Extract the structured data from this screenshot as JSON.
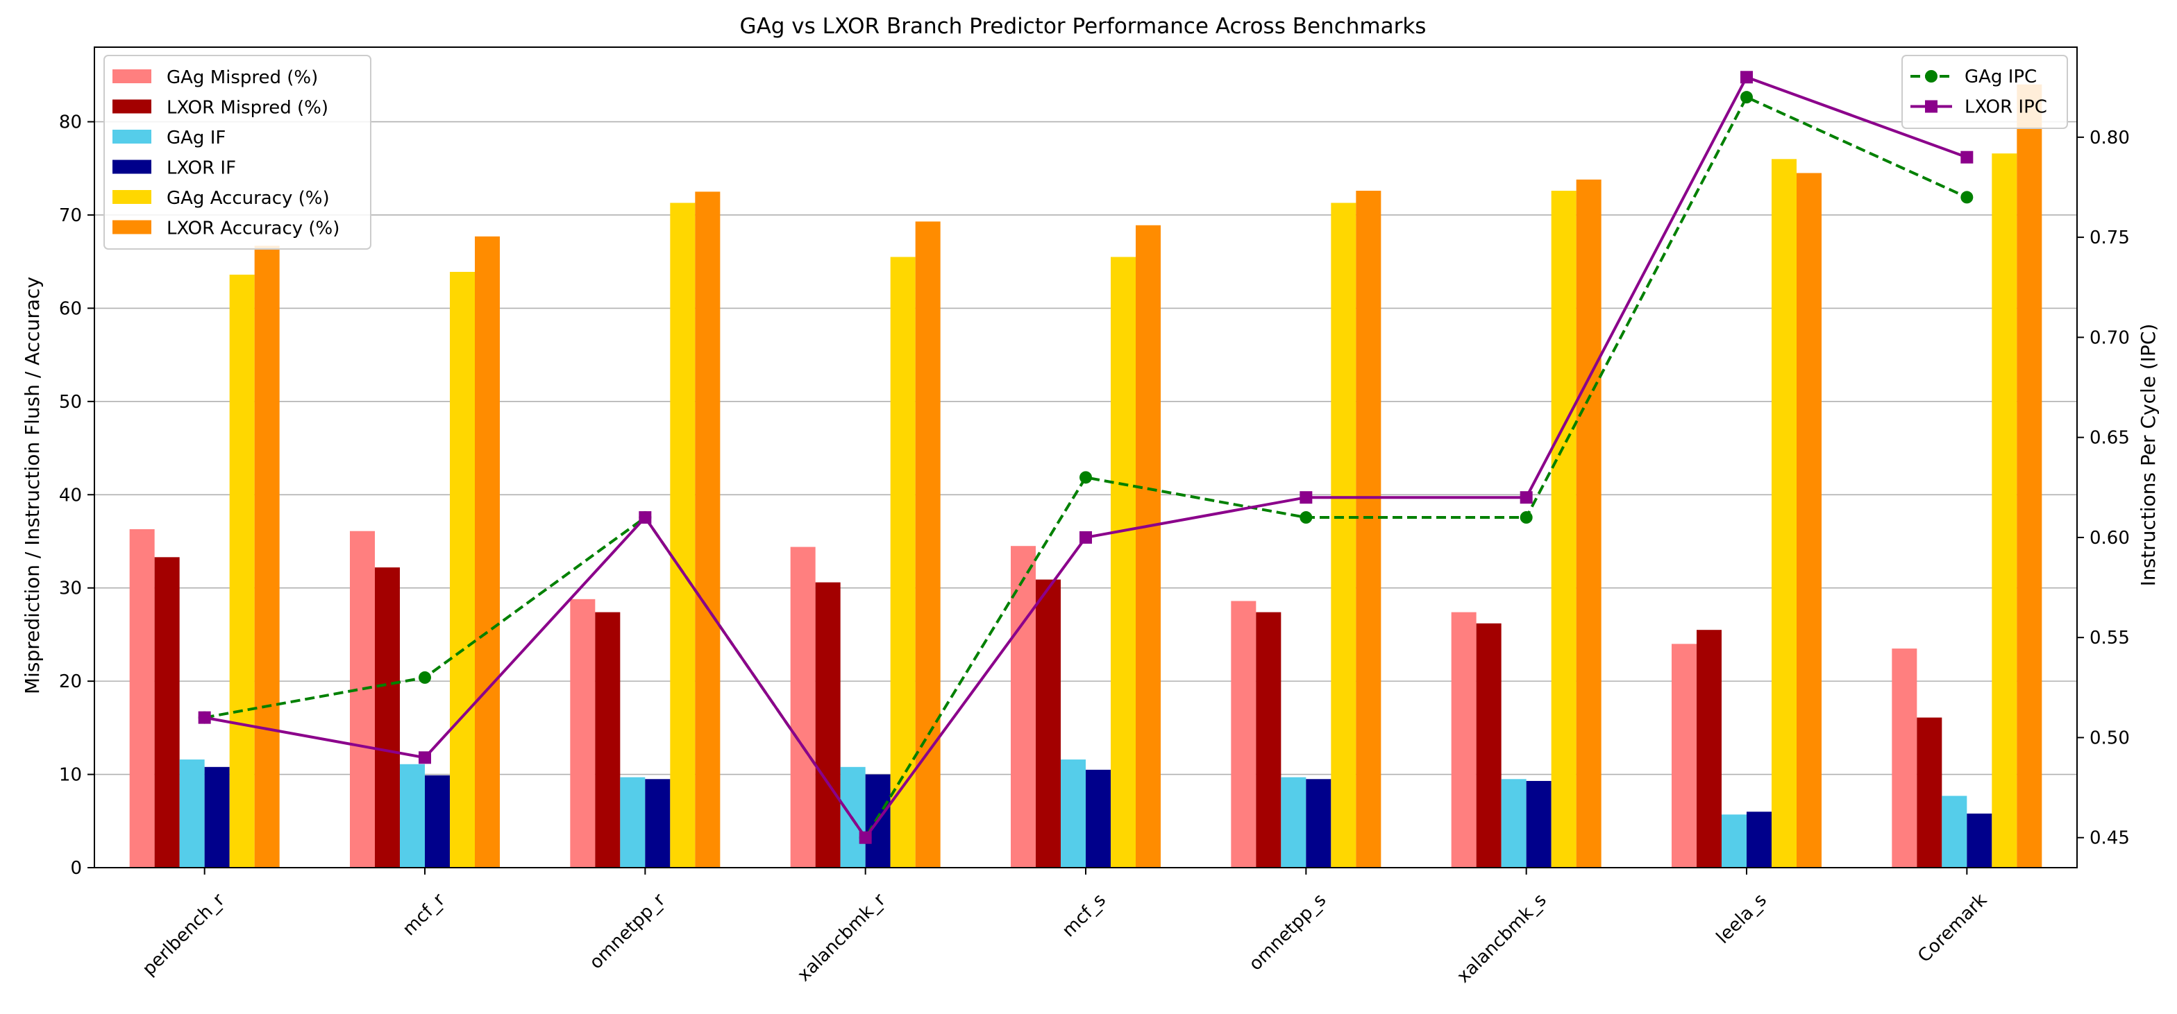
{
  "chart_data": {
    "type": "bar",
    "title": "GAg vs LXOR Branch Predictor Performance Across Benchmarks",
    "xlabel": "",
    "ylabel": "Misprediction / Instruction Flush / Accuracy",
    "y2label": "Instructions Per Cycle (IPC)",
    "ylim": [
      0,
      88
    ],
    "y2lim": [
      0.435,
      0.845
    ],
    "yticks": [
      0,
      10,
      20,
      30,
      40,
      50,
      60,
      70,
      80
    ],
    "y2ticks": [
      "0.45",
      "0.50",
      "0.55",
      "0.60",
      "0.65",
      "0.70",
      "0.75",
      "0.80"
    ],
    "grid": "horizontal",
    "categories": [
      "perlbench_r",
      "mcf_r",
      "omnetpp_r",
      "xalancbmk_r",
      "mcf_s",
      "omnetpp_s",
      "xalancbmk_s",
      "leela_s",
      "Coremark"
    ],
    "series": [
      {
        "name": "GAg Mispred (%)",
        "color": "#ff7f7f",
        "values": [
          36.3,
          36.1,
          28.8,
          34.4,
          34.5,
          28.6,
          27.4,
          24.0,
          23.5
        ]
      },
      {
        "name": "LXOR Mispred (%)",
        "color": "#a30000",
        "values": [
          33.3,
          32.2,
          27.4,
          30.6,
          30.9,
          27.4,
          26.2,
          25.5,
          16.1
        ]
      },
      {
        "name": "GAg IF",
        "color": "#55cdea",
        "values": [
          11.6,
          11.1,
          9.7,
          10.8,
          11.6,
          9.7,
          9.5,
          5.7,
          7.7
        ]
      },
      {
        "name": "LXOR IF",
        "color": "#00008b",
        "values": [
          10.8,
          9.9,
          9.5,
          10.0,
          10.5,
          9.5,
          9.3,
          6.0,
          5.8
        ]
      },
      {
        "name": "GAg Accuracy (%)",
        "color": "#ffd700",
        "values": [
          63.6,
          63.9,
          71.3,
          65.5,
          65.5,
          71.3,
          72.6,
          76.0,
          76.6
        ]
      },
      {
        "name": "LXOR Accuracy (%)",
        "color": "#ff8c00",
        "values": [
          66.7,
          67.7,
          72.5,
          69.3,
          68.9,
          72.6,
          73.8,
          74.5,
          84.0
        ]
      }
    ],
    "lines": [
      {
        "name": "GAg IPC",
        "color": "#008000",
        "style": "dashed",
        "marker": "circle",
        "values": [
          0.51,
          0.53,
          0.61,
          0.45,
          0.63,
          0.61,
          0.61,
          0.82,
          0.77
        ]
      },
      {
        "name": "LXOR IPC",
        "color": "#8b008b",
        "style": "solid",
        "marker": "square",
        "values": [
          0.51,
          0.49,
          0.61,
          0.45,
          0.6,
          0.62,
          0.62,
          0.83,
          0.79
        ]
      }
    ],
    "legend_bars_position": "top-left",
    "legend_lines_position": "top-right"
  }
}
